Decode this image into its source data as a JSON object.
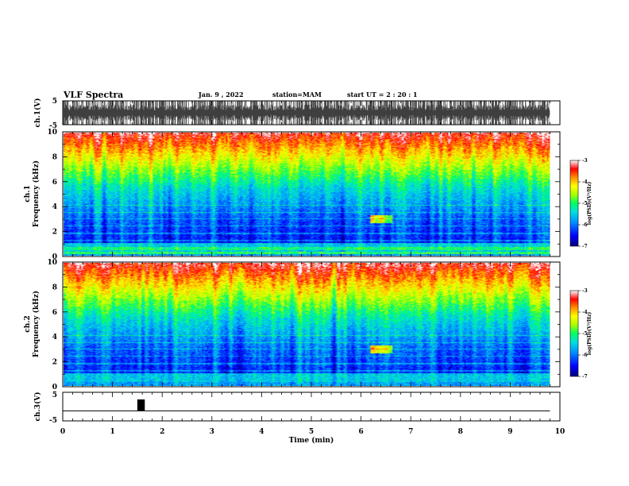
{
  "header": {
    "title": "VLF Spectra",
    "date": "Jan. 9 , 2022",
    "station": "station=MAM",
    "start": "start UT =  2 : 20 : 1"
  },
  "colors": {
    "spectrum": [
      "#00007a",
      "#0000ff",
      "#0090ff",
      "#00e0e0",
      "#00ff60",
      "#a8ff00",
      "#ffff00",
      "#ff9000",
      "#ff0000",
      "#ffffff"
    ]
  },
  "chart_data": [
    {
      "id": "ch1-waveform",
      "type": "line",
      "ylabel": "ch.1(V)",
      "ylim": [
        -5,
        5
      ],
      "yticks": [
        "5",
        "-5"
      ],
      "xlim": [
        0,
        10
      ]
    },
    {
      "id": "ch1-spectrogram",
      "type": "heatmap",
      "ylabel": "ch.1\nFrequency (kHz)",
      "ylabel_channel": "ch.1",
      "ylabel_axis": "Frequency (kHz)",
      "ylim": [
        0,
        10
      ],
      "yticks": [
        "0",
        "2",
        "4",
        "6",
        "8",
        "10"
      ],
      "xlim": [
        0,
        10
      ],
      "data_end_min": 9.8,
      "colorbar": {
        "label": "log(PSD)(V²/Hz)",
        "range": [
          -7,
          -3
        ],
        "ticks": [
          "-3",
          "-4",
          "-5",
          "-6",
          "-7"
        ]
      },
      "feature": {
        "time_min": [
          6.2,
          6.65
        ],
        "freq_khz": [
          2.6,
          3.3
        ]
      }
    },
    {
      "id": "ch2-spectrogram",
      "type": "heatmap",
      "ylabel": "ch.2\nFrequency (kHz)",
      "ylabel_channel": "ch.2",
      "ylabel_axis": "Frequency (kHz)",
      "ylim": [
        0,
        10
      ],
      "yticks": [
        "0",
        "2",
        "4",
        "6",
        "8",
        "10"
      ],
      "xlim": [
        0,
        10
      ],
      "data_end_min": 9.8,
      "colorbar": {
        "label": "log(PSD)(V²/Hz)",
        "range": [
          -7,
          -3
        ],
        "ticks": [
          "-3",
          "-4",
          "-5",
          "-6",
          "-7"
        ]
      },
      "feature": {
        "time_min": [
          6.2,
          6.65
        ],
        "freq_khz": [
          2.6,
          3.3
        ]
      }
    },
    {
      "id": "ch3-waveform",
      "type": "line",
      "ylabel": "ch.3(V)",
      "ylim": [
        -5,
        5
      ],
      "yticks": [
        "5",
        "-5"
      ],
      "xlim": [
        0,
        10
      ],
      "baseline_v": -1.5,
      "pulse": {
        "x": [
          1.5,
          1.65
        ],
        "y": [
          -1.5,
          2.5
        ]
      }
    }
  ],
  "xaxis": {
    "label": "Time (min)",
    "ticks": [
      "0",
      "1",
      "2",
      "3",
      "4",
      "5",
      "6",
      "7",
      "8",
      "9",
      "10"
    ]
  }
}
